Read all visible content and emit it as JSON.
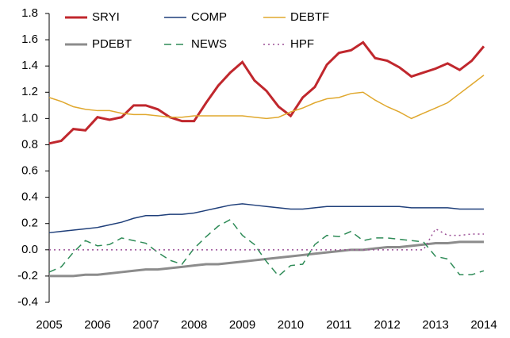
{
  "chart_data": {
    "type": "line",
    "x": [
      2005,
      2005.25,
      2005.5,
      2005.75,
      2006,
      2006.25,
      2006.5,
      2006.75,
      2007,
      2007.25,
      2007.5,
      2007.75,
      2008,
      2008.25,
      2008.5,
      2008.75,
      2009,
      2009.25,
      2009.5,
      2009.75,
      2010,
      2010.25,
      2010.5,
      2010.75,
      2011,
      2011.25,
      2011.5,
      2011.75,
      2012,
      2012.25,
      2012.5,
      2012.75,
      2013,
      2013.25,
      2013.5,
      2013.75,
      2014
    ],
    "series": [
      {
        "name": "SRYI",
        "color": "#c0272d",
        "width": 3,
        "style": "solid",
        "values": [
          0.81,
          0.83,
          0.92,
          0.91,
          1.01,
          0.99,
          1.01,
          1.1,
          1.1,
          1.07,
          1.01,
          0.98,
          0.98,
          1.12,
          1.25,
          1.35,
          1.43,
          1.29,
          1.21,
          1.09,
          1.02,
          1.16,
          1.24,
          1.41,
          1.5,
          1.52,
          1.58,
          1.46,
          1.44,
          1.39,
          1.32,
          1.35,
          1.38,
          1.42,
          1.37,
          1.44,
          1.55
        ]
      },
      {
        "name": "COMP",
        "color": "#1f3f7a",
        "width": 1.5,
        "style": "solid",
        "values": [
          0.13,
          0.14,
          0.15,
          0.16,
          0.17,
          0.19,
          0.21,
          0.24,
          0.26,
          0.26,
          0.27,
          0.27,
          0.28,
          0.3,
          0.32,
          0.34,
          0.35,
          0.34,
          0.33,
          0.32,
          0.31,
          0.31,
          0.32,
          0.33,
          0.33,
          0.33,
          0.33,
          0.33,
          0.33,
          0.33,
          0.32,
          0.32,
          0.32,
          0.32,
          0.31,
          0.31,
          0.31
        ]
      },
      {
        "name": "DEBTF",
        "color": "#e0a82e",
        "width": 1.5,
        "style": "solid",
        "values": [
          1.16,
          1.13,
          1.09,
          1.07,
          1.06,
          1.06,
          1.04,
          1.03,
          1.03,
          1.02,
          1.01,
          1.01,
          1.02,
          1.02,
          1.02,
          1.02,
          1.02,
          1.01,
          1.0,
          1.01,
          1.05,
          1.08,
          1.12,
          1.15,
          1.16,
          1.19,
          1.2,
          1.14,
          1.09,
          1.05,
          1.0,
          1.04,
          1.08,
          1.12,
          1.19,
          1.26,
          1.33
        ]
      },
      {
        "name": "PDEBT",
        "color": "#8c8c8c",
        "width": 3,
        "style": "solid",
        "values": [
          -0.2,
          -0.2,
          -0.2,
          -0.19,
          -0.19,
          -0.18,
          -0.17,
          -0.16,
          -0.15,
          -0.15,
          -0.14,
          -0.13,
          -0.12,
          -0.11,
          -0.11,
          -0.1,
          -0.09,
          -0.08,
          -0.07,
          -0.06,
          -0.05,
          -0.04,
          -0.03,
          -0.02,
          -0.01,
          0.0,
          0.0,
          0.01,
          0.02,
          0.02,
          0.03,
          0.04,
          0.05,
          0.05,
          0.06,
          0.06,
          0.06
        ]
      },
      {
        "name": "NEWS",
        "color": "#2e8b57",
        "width": 1.5,
        "style": "dash",
        "values": [
          -0.17,
          -0.13,
          -0.02,
          0.07,
          0.03,
          0.04,
          0.09,
          0.07,
          0.05,
          -0.02,
          -0.08,
          -0.11,
          0.01,
          0.1,
          0.18,
          0.23,
          0.11,
          0.04,
          -0.09,
          -0.2,
          -0.12,
          -0.11,
          0.04,
          0.11,
          0.1,
          0.14,
          0.07,
          0.09,
          0.09,
          0.08,
          0.07,
          0.06,
          -0.05,
          -0.07,
          -0.19,
          -0.19,
          -0.16
        ]
      },
      {
        "name": "HPF",
        "color": "#9b4f96",
        "width": 1.5,
        "style": "dot",
        "values": [
          0,
          0,
          0,
          0,
          0,
          0,
          0,
          0,
          0,
          0,
          0,
          0,
          0,
          0,
          0,
          0,
          0,
          0,
          0,
          0,
          0,
          0,
          0,
          0,
          0,
          0,
          0,
          0,
          0,
          0,
          0,
          0,
          0.16,
          0.11,
          0.11,
          0.12,
          0.12
        ]
      }
    ],
    "xlim": [
      2005,
      2014
    ],
    "xticks": [
      2005,
      2006,
      2007,
      2008,
      2009,
      2010,
      2011,
      2012,
      2013,
      2014
    ],
    "ylim": [
      -0.4,
      1.8
    ],
    "yticks": [
      -0.4,
      -0.2,
      {
        "value": 0,
        "label": "0.0"
      },
      0.2,
      0.4,
      0.6,
      0.8,
      {
        "value": 1,
        "label": "1.0"
      },
      1.2,
      1.4,
      1.6,
      1.8
    ],
    "grid": false
  }
}
